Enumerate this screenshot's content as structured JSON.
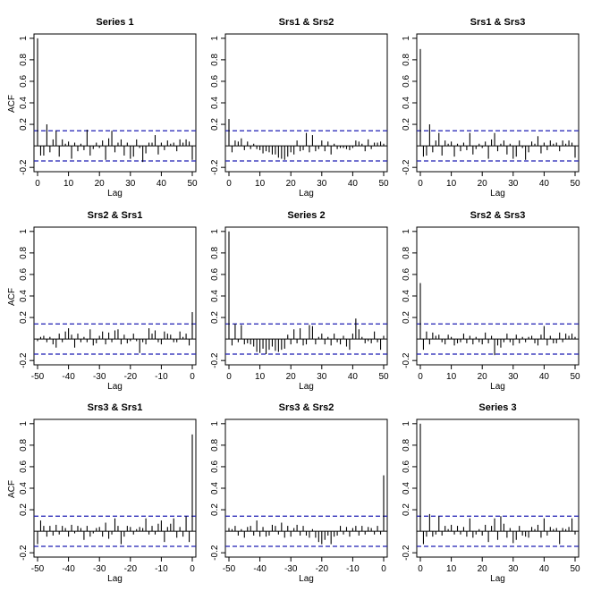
{
  "chart_data": [
    {
      "type": "bar",
      "title": "Series 1",
      "xlabel": "Lag",
      "ylabel": "ACF",
      "xlim": [
        0,
        50
      ],
      "ylim": [
        -0.2,
        1.0
      ],
      "x_ticks": [
        0,
        10,
        20,
        30,
        40,
        50
      ],
      "y_ticks": [
        -0.2,
        0.2,
        0.4,
        0.6,
        0.8,
        1.0
      ],
      "confidence_band": 0.14,
      "colors": {
        "bars": "#000000",
        "band": "#1f1fb4",
        "zero": "#000000"
      },
      "x": [
        0,
        1,
        2,
        3,
        4,
        5,
        6,
        7,
        8,
        9,
        10,
        11,
        12,
        13,
        14,
        15,
        16,
        17,
        18,
        19,
        20,
        21,
        22,
        23,
        24,
        25,
        26,
        27,
        28,
        29,
        30,
        31,
        32,
        33,
        34,
        35,
        36,
        37,
        38,
        39,
        40,
        41,
        42,
        43,
        44,
        45,
        46,
        47,
        48,
        49,
        50
      ],
      "values": [
        1.0,
        -0.09,
        -0.09,
        0.2,
        -0.06,
        0.06,
        0.14,
        -0.1,
        0.06,
        0.02,
        0.04,
        -0.12,
        0.03,
        -0.05,
        0.02,
        -0.04,
        0.15,
        -0.09,
        -0.03,
        0.03,
        -0.02,
        0.05,
        -0.13,
        0.07,
        0.14,
        -0.06,
        0.03,
        0.06,
        -0.09,
        0.03,
        -0.12,
        -0.1,
        0.06,
        -0.02,
        -0.15,
        -0.07,
        0.03,
        0.03,
        0.1,
        -0.08,
        0.03,
        -0.04,
        0.05,
        0.02,
        0.03,
        -0.05,
        0.06,
        0.03,
        0.06,
        0.04,
        -0.13
      ]
    },
    {
      "type": "bar",
      "title": "Srs1 & Srs2",
      "xlabel": "Lag",
      "xlim": [
        0,
        50
      ],
      "ylim": [
        -0.2,
        1.0
      ],
      "x_ticks": [
        0,
        10,
        20,
        30,
        40,
        50
      ],
      "y_ticks": [
        -0.2,
        0.2,
        0.4,
        0.6,
        0.8,
        1.0
      ],
      "confidence_band": 0.14,
      "x": [
        0,
        1,
        2,
        3,
        4,
        5,
        6,
        7,
        8,
        9,
        10,
        11,
        12,
        13,
        14,
        15,
        16,
        17,
        18,
        19,
        20,
        21,
        22,
        23,
        24,
        25,
        26,
        27,
        28,
        29,
        30,
        31,
        32,
        33,
        34,
        35,
        36,
        37,
        38,
        39,
        40,
        41,
        42,
        43,
        44,
        45,
        46,
        47,
        48,
        49,
        50
      ],
      "values": [
        0.25,
        -0.06,
        0.05,
        0.04,
        0.07,
        -0.04,
        0.04,
        -0.03,
        0.02,
        -0.03,
        -0.04,
        -0.07,
        -0.05,
        -0.06,
        -0.08,
        -0.08,
        -0.11,
        -0.12,
        -0.13,
        -0.1,
        -0.06,
        -0.08,
        0.05,
        -0.05,
        -0.04,
        0.12,
        -0.06,
        0.1,
        -0.05,
        -0.03,
        0.05,
        -0.05,
        0.04,
        -0.08,
        0.02,
        -0.03,
        -0.02,
        -0.02,
        -0.03,
        -0.04,
        -0.02,
        0.05,
        0.04,
        0.02,
        -0.05,
        0.06,
        -0.03,
        0.03,
        0.03,
        0.04,
        0.02
      ]
    },
    {
      "type": "bar",
      "title": "Srs1 & Srs3",
      "xlabel": "Lag",
      "xlim": [
        0,
        50
      ],
      "ylim": [
        -0.2,
        1.0
      ],
      "x_ticks": [
        0,
        10,
        20,
        30,
        40,
        50
      ],
      "y_ticks": [
        -0.2,
        0.2,
        0.4,
        0.6,
        0.8,
        1.0
      ],
      "confidence_band": 0.14,
      "x": [
        0,
        1,
        2,
        3,
        4,
        5,
        6,
        7,
        8,
        9,
        10,
        11,
        12,
        13,
        14,
        15,
        16,
        17,
        18,
        19,
        20,
        21,
        22,
        23,
        24,
        25,
        26,
        27,
        28,
        29,
        30,
        31,
        32,
        33,
        34,
        35,
        36,
        37,
        38,
        39,
        40,
        41,
        42,
        43,
        44,
        45,
        46,
        47,
        48,
        49,
        50
      ],
      "values": [
        0.9,
        -0.1,
        -0.09,
        0.2,
        -0.06,
        0.05,
        0.12,
        -0.09,
        0.05,
        0.02,
        0.04,
        -0.1,
        0.02,
        -0.05,
        0.03,
        -0.04,
        0.12,
        -0.08,
        -0.03,
        0.02,
        -0.02,
        0.04,
        -0.12,
        0.06,
        0.12,
        -0.05,
        0.02,
        0.05,
        -0.08,
        0.02,
        -0.12,
        -0.1,
        0.05,
        -0.02,
        -0.13,
        -0.06,
        0.04,
        0.02,
        0.09,
        -0.07,
        0.03,
        -0.04,
        0.05,
        0.02,
        0.03,
        -0.05,
        0.05,
        0.02,
        0.05,
        0.03,
        -0.11
      ]
    },
    {
      "type": "bar",
      "title": "Srs2 & Srs1",
      "xlabel": "Lag",
      "ylabel": "ACF",
      "xlim": [
        -50,
        0
      ],
      "ylim": [
        -0.2,
        1.0
      ],
      "x_ticks": [
        -50,
        -40,
        -30,
        -20,
        -10,
        0
      ],
      "y_ticks": [
        -0.2,
        0.2,
        0.4,
        0.6,
        0.8,
        1.0
      ],
      "confidence_band": 0.14,
      "x": [
        -50,
        -49,
        -48,
        -47,
        -46,
        -45,
        -44,
        -43,
        -42,
        -41,
        -40,
        -39,
        -38,
        -37,
        -36,
        -35,
        -34,
        -33,
        -32,
        -31,
        -30,
        -29,
        -28,
        -27,
        -26,
        -25,
        -24,
        -23,
        -22,
        -21,
        -20,
        -19,
        -18,
        -17,
        -16,
        -15,
        -14,
        -13,
        -12,
        -11,
        -10,
        -9,
        -8,
        -7,
        -6,
        -5,
        -4,
        -3,
        -2,
        -1,
        0
      ],
      "values": [
        -0.02,
        0.02,
        0.03,
        -0.03,
        0.02,
        -0.05,
        -0.08,
        0.05,
        -0.03,
        0.07,
        0.1,
        0.04,
        -0.08,
        0.05,
        -0.03,
        0.02,
        -0.03,
        0.09,
        -0.06,
        -0.04,
        0.03,
        0.07,
        -0.05,
        0.06,
        -0.03,
        0.08,
        0.09,
        -0.05,
        0.04,
        -0.04,
        -0.02,
        0.05,
        -0.02,
        -0.13,
        -0.03,
        -0.05,
        0.1,
        0.05,
        0.08,
        -0.03,
        -0.05,
        0.07,
        0.05,
        0.04,
        -0.03,
        -0.03,
        0.07,
        0.02,
        0.05,
        -0.06,
        0.25
      ]
    },
    {
      "type": "bar",
      "title": "Series 2",
      "xlabel": "Lag",
      "xlim": [
        0,
        50
      ],
      "ylim": [
        -0.2,
        1.0
      ],
      "x_ticks": [
        0,
        10,
        20,
        30,
        40,
        50
      ],
      "y_ticks": [
        -0.2,
        0.2,
        0.4,
        0.6,
        0.8,
        1.0
      ],
      "confidence_band": 0.14,
      "x": [
        0,
        1,
        2,
        3,
        4,
        5,
        6,
        7,
        8,
        9,
        10,
        11,
        12,
        13,
        14,
        15,
        16,
        17,
        18,
        19,
        20,
        21,
        22,
        23,
        24,
        25,
        26,
        27,
        28,
        29,
        30,
        31,
        32,
        33,
        34,
        35,
        36,
        37,
        38,
        39,
        40,
        41,
        42,
        43,
        44,
        45,
        46,
        47,
        48,
        49,
        50
      ],
      "values": [
        1.0,
        -0.06,
        0.14,
        -0.03,
        0.13,
        -0.05,
        -0.04,
        -0.05,
        -0.07,
        -0.12,
        -0.13,
        -0.09,
        -0.14,
        -0.1,
        -0.07,
        -0.11,
        -0.12,
        -0.1,
        -0.09,
        0.04,
        -0.05,
        0.09,
        -0.04,
        0.1,
        -0.06,
        -0.05,
        0.13,
        0.12,
        -0.05,
        0.02,
        0.05,
        -0.05,
        0.02,
        -0.06,
        0.05,
        -0.03,
        -0.05,
        0.03,
        -0.07,
        -0.1,
        0.05,
        0.19,
        0.09,
        0.02,
        -0.04,
        -0.02,
        -0.04,
        0.07,
        -0.03,
        -0.1,
        0.03
      ]
    },
    {
      "type": "bar",
      "title": "Srs2 & Srs3",
      "xlabel": "Lag",
      "xlim": [
        0,
        50
      ],
      "ylim": [
        -0.2,
        1.0
      ],
      "x_ticks": [
        0,
        10,
        20,
        30,
        40,
        50
      ],
      "y_ticks": [
        -0.2,
        0.2,
        0.4,
        0.6,
        0.8,
        1.0
      ],
      "confidence_band": 0.14,
      "x": [
        0,
        1,
        2,
        3,
        4,
        5,
        6,
        7,
        8,
        9,
        10,
        11,
        12,
        13,
        14,
        15,
        16,
        17,
        18,
        19,
        20,
        21,
        22,
        23,
        24,
        25,
        26,
        27,
        28,
        29,
        30,
        31,
        32,
        33,
        34,
        35,
        36,
        37,
        38,
        39,
        40,
        41,
        42,
        43,
        44,
        45,
        46,
        47,
        48,
        49,
        50
      ],
      "values": [
        0.52,
        -0.1,
        0.07,
        -0.05,
        0.06,
        0.03,
        0.04,
        -0.03,
        -0.05,
        0.04,
        0.02,
        -0.06,
        -0.04,
        -0.03,
        0.05,
        -0.04,
        0.03,
        -0.05,
        0.02,
        -0.03,
        -0.05,
        0.06,
        -0.04,
        0.03,
        -0.15,
        -0.06,
        -0.08,
        -0.03,
        0.05,
        -0.03,
        -0.06,
        0.04,
        -0.04,
        0.02,
        -0.03,
        0.02,
        0.03,
        -0.04,
        -0.06,
        0.04,
        0.12,
        -0.06,
        0.03,
        -0.04,
        -0.04,
        0.06,
        -0.03,
        0.05,
        0.03,
        0.05,
        0.02
      ]
    },
    {
      "type": "bar",
      "title": "Srs3 & Srs1",
      "xlabel": "Lag",
      "ylabel": "ACF",
      "xlim": [
        -50,
        0
      ],
      "ylim": [
        -0.2,
        1.0
      ],
      "x_ticks": [
        -50,
        -40,
        -30,
        -20,
        -10,
        0
      ],
      "y_ticks": [
        -0.2,
        0.2,
        0.4,
        0.6,
        0.8,
        1.0
      ],
      "confidence_band": 0.14,
      "x": [
        -50,
        -49,
        -48,
        -47,
        -46,
        -45,
        -44,
        -43,
        -42,
        -41,
        -40,
        -39,
        -38,
        -37,
        -36,
        -35,
        -34,
        -33,
        -32,
        -31,
        -30,
        -29,
        -28,
        -27,
        -26,
        -25,
        -24,
        -23,
        -22,
        -21,
        -20,
        -19,
        -18,
        -17,
        -16,
        -15,
        -14,
        -13,
        -12,
        -11,
        -10,
        -9,
        -8,
        -7,
        -6,
        -5,
        -4,
        -3,
        -2,
        -1,
        0
      ],
      "values": [
        -0.12,
        0.1,
        0.05,
        -0.05,
        0.05,
        -0.04,
        0.06,
        -0.03,
        0.05,
        0.03,
        -0.05,
        0.06,
        -0.02,
        0.05,
        0.03,
        -0.08,
        0.05,
        -0.05,
        -0.02,
        0.03,
        0.04,
        -0.05,
        0.08,
        -0.07,
        -0.03,
        0.12,
        0.05,
        -0.12,
        -0.05,
        0.05,
        0.04,
        -0.03,
        0.02,
        0.04,
        0.03,
        0.12,
        -0.03,
        0.05,
        -0.03,
        0.07,
        0.1,
        -0.1,
        0.04,
        0.07,
        0.12,
        -0.06,
        0.04,
        -0.05,
        0.14,
        -0.1,
        0.9
      ]
    },
    {
      "type": "bar",
      "title": "Srs3 & Srs2",
      "xlabel": "Lag",
      "xlim": [
        -50,
        0
      ],
      "ylim": [
        -0.2,
        1.0
      ],
      "x_ticks": [
        -50,
        -40,
        -30,
        -20,
        -10,
        0
      ],
      "y_ticks": [
        -0.2,
        0.2,
        0.4,
        0.6,
        0.8,
        1.0
      ],
      "confidence_band": 0.14,
      "x": [
        -50,
        -49,
        -48,
        -47,
        -46,
        -45,
        -44,
        -43,
        -42,
        -41,
        -40,
        -39,
        -38,
        -37,
        -36,
        -35,
        -34,
        -33,
        -32,
        -31,
        -30,
        -29,
        -28,
        -27,
        -26,
        -25,
        -24,
        -23,
        -22,
        -21,
        -20,
        -19,
        -18,
        -17,
        -16,
        -15,
        -14,
        -13,
        -12,
        -11,
        -10,
        -9,
        -8,
        -7,
        -6,
        -5,
        -4,
        -3,
        -2,
        -1,
        0
      ],
      "values": [
        0.03,
        0.02,
        0.05,
        -0.04,
        0.02,
        -0.06,
        0.04,
        0.05,
        -0.04,
        0.1,
        -0.05,
        0.04,
        -0.05,
        -0.04,
        0.06,
        0.05,
        -0.03,
        0.08,
        -0.06,
        0.05,
        -0.05,
        0.03,
        0.06,
        -0.04,
        0.05,
        -0.04,
        -0.06,
        0.02,
        -0.06,
        -0.1,
        -0.12,
        -0.08,
        -0.04,
        -0.12,
        -0.05,
        -0.04,
        0.05,
        -0.03,
        0.04,
        -0.05,
        0.03,
        0.05,
        -0.04,
        0.05,
        -0.03,
        0.04,
        0.03,
        -0.03,
        0.05,
        -0.03,
        0.52
      ]
    },
    {
      "type": "bar",
      "title": "Series 3",
      "xlabel": "Lag",
      "xlim": [
        0,
        50
      ],
      "ylim": [
        -0.2,
        1.0
      ],
      "x_ticks": [
        0,
        10,
        20,
        30,
        40,
        50
      ],
      "y_ticks": [
        -0.2,
        0.2,
        0.4,
        0.6,
        0.8,
        1.0
      ],
      "confidence_band": 0.14,
      "x": [
        0,
        1,
        2,
        3,
        4,
        5,
        6,
        7,
        8,
        9,
        10,
        11,
        12,
        13,
        14,
        15,
        16,
        17,
        18,
        19,
        20,
        21,
        22,
        23,
        24,
        25,
        26,
        27,
        28,
        29,
        30,
        31,
        32,
        33,
        34,
        35,
        36,
        37,
        38,
        39,
        40,
        41,
        42,
        43,
        44,
        45,
        46,
        47,
        48,
        49,
        50
      ],
      "values": [
        1.0,
        -0.12,
        -0.05,
        0.16,
        -0.05,
        -0.03,
        0.14,
        -0.04,
        0.05,
        0.02,
        0.06,
        -0.03,
        0.05,
        -0.03,
        0.04,
        -0.05,
        0.12,
        -0.06,
        -0.03,
        0.02,
        -0.04,
        0.06,
        -0.1,
        0.05,
        0.12,
        -0.08,
        0.14,
        0.07,
        -0.06,
        0.03,
        -0.11,
        -0.08,
        0.05,
        -0.04,
        -0.05,
        -0.06,
        0.04,
        0.02,
        0.06,
        -0.06,
        0.12,
        -0.04,
        0.04,
        0.02,
        0.03,
        -0.12,
        0.03,
        0.02,
        0.04,
        0.12,
        -0.03
      ]
    }
  ]
}
